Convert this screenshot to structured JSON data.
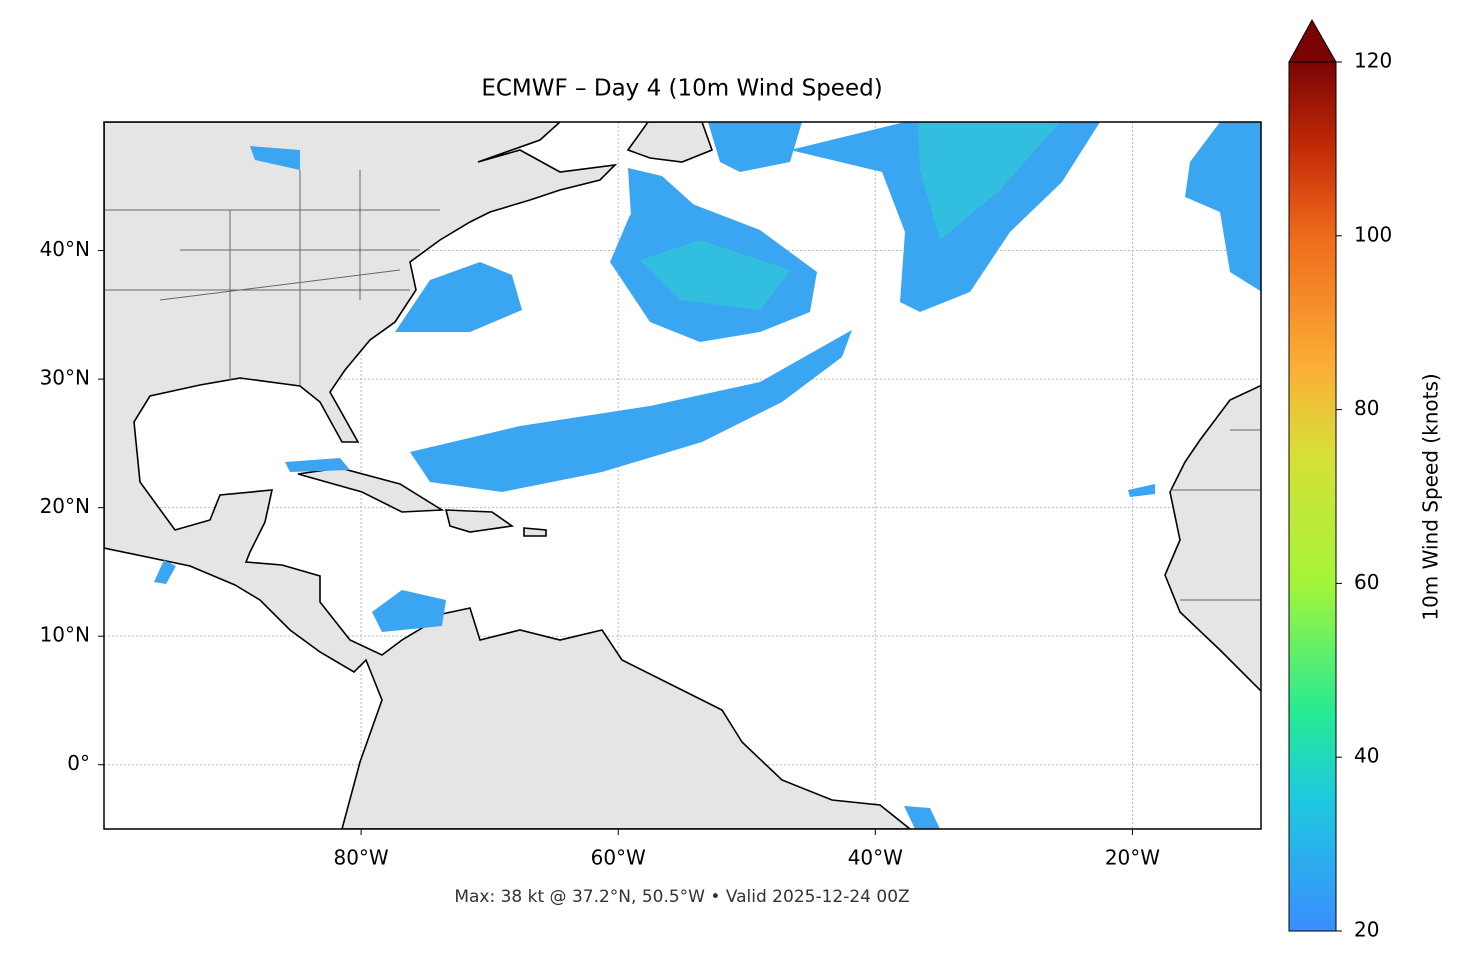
{
  "chart_data": {
    "type": "map",
    "title": "ECMWF – Day 4 (10m Wind Speed)",
    "footer": "Max: 38 kt @ 37.2°N, 50.5°W • Valid 2025-12-24 00Z",
    "xlim": [
      -100,
      -10
    ],
    "ylim": [
      -5,
      50
    ],
    "xticks": [
      {
        "value": -80,
        "label": "80°W"
      },
      {
        "value": -60,
        "label": "60°W"
      },
      {
        "value": -40,
        "label": "40°W"
      },
      {
        "value": -20,
        "label": "20°W"
      }
    ],
    "yticks": [
      {
        "value": 0,
        "label": "0°"
      },
      {
        "value": 10,
        "label": "10°N"
      },
      {
        "value": 20,
        "label": "20°N"
      },
      {
        "value": 30,
        "label": "30°N"
      },
      {
        "value": 40,
        "label": "40°N"
      }
    ],
    "grid": true,
    "colorbar": {
      "label": "10m Wind Speed (knots)",
      "clim": [
        20,
        120
      ],
      "cticks": [
        20,
        40,
        60,
        80,
        100,
        120
      ]
    }
  }
}
